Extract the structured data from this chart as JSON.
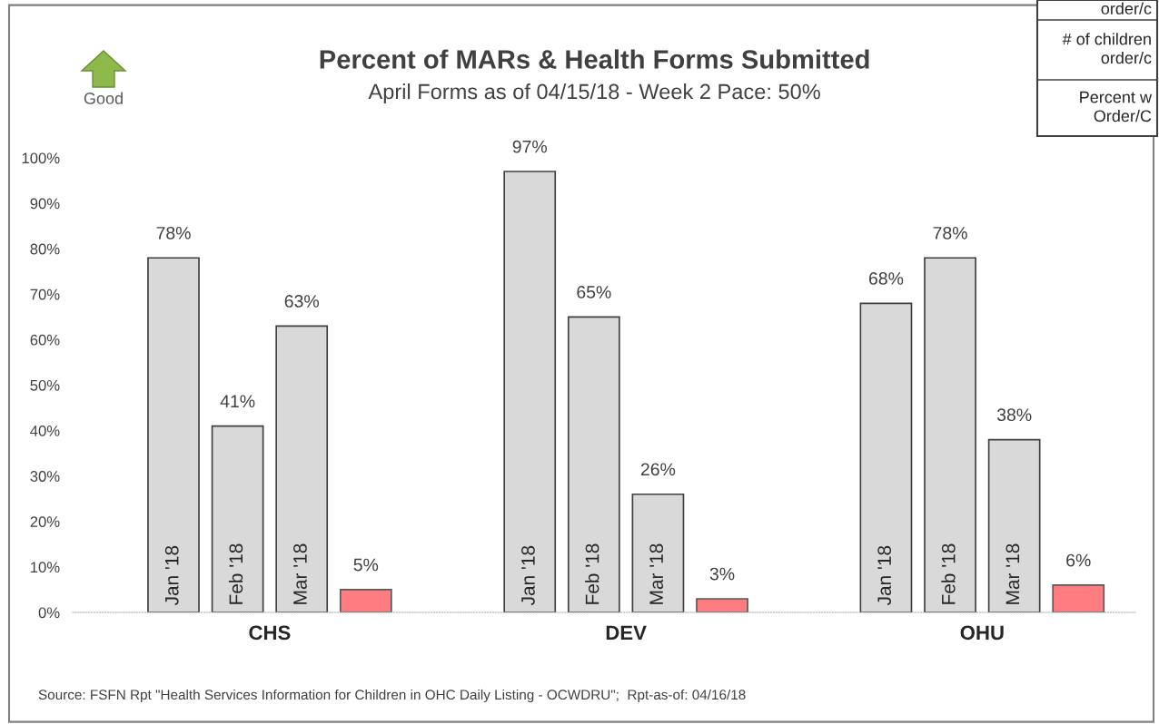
{
  "chart_data": {
    "type": "bar",
    "title": "Percent of MARs & Health Forms Submitted",
    "subtitle": "April Forms as of 04/15/18 - Week 2 Pace: 50%",
    "categories": [
      "CHS",
      "DEV",
      "OHU"
    ],
    "series": [
      {
        "name": "Jan '18",
        "color": "#d9d9d9",
        "values": [
          78,
          97,
          68
        ],
        "value_labels": [
          "78%",
          "97%",
          "68%"
        ]
      },
      {
        "name": "Feb '18",
        "color": "#d9d9d9",
        "values": [
          41,
          65,
          78
        ],
        "value_labels": [
          "41%",
          "65%",
          "78%"
        ]
      },
      {
        "name": "Mar '18",
        "color": "#d9d9d9",
        "values": [
          63,
          26,
          38
        ],
        "value_labels": [
          "63%",
          "26%",
          "38%"
        ]
      },
      {
        "color": "#ff7c80",
        "values": [
          5,
          3,
          6
        ],
        "value_labels": [
          "5%",
          "3%",
          "6%"
        ]
      }
    ],
    "ylim": [
      0,
      100
    ],
    "yticks": [
      {
        "value": 0,
        "label": "0%"
      },
      {
        "value": 10,
        "label": "10%"
      },
      {
        "value": 20,
        "label": "20%"
      },
      {
        "value": 30,
        "label": "30%"
      },
      {
        "value": 40,
        "label": "40%"
      },
      {
        "value": 50,
        "label": "50%"
      },
      {
        "value": 60,
        "label": "60%"
      },
      {
        "value": 70,
        "label": "70%"
      },
      {
        "value": 80,
        "label": "80%"
      },
      {
        "value": 90,
        "label": "90%"
      },
      {
        "value": 100,
        "label": "100%"
      }
    ],
    "grid": false,
    "legend": false,
    "annotations": [
      "Good",
      "Source: FSFN Rpt \"Health Services Information for Children in OHC Daily Listing - OCWDRU\";  Rpt-as-of: 04/16/18",
      "order/c",
      "# of children\norder/c",
      "Percent w\nOrder/C"
    ]
  }
}
